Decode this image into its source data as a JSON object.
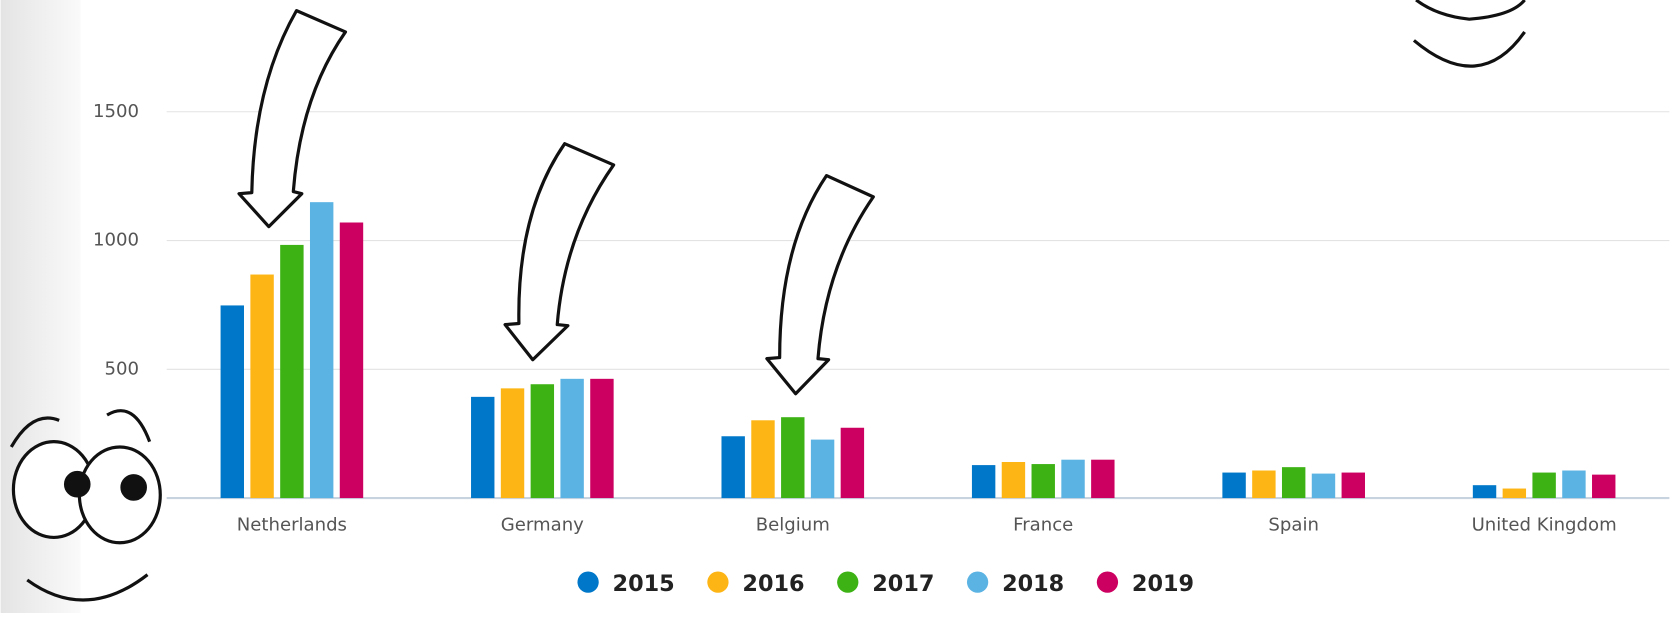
{
  "chart_data": {
    "type": "bar",
    "categories": [
      "Netherlands",
      "Germany",
      "Belgium",
      "France",
      "Spain",
      "United Kingdom"
    ],
    "series": [
      {
        "name": "2015",
        "color": "#0077c8",
        "values": [
          748,
          393,
          240,
          128,
          99,
          50
        ]
      },
      {
        "name": "2016",
        "color": "#fdb515",
        "values": [
          868,
          426,
          302,
          140,
          107,
          37
        ]
      },
      {
        "name": "2017",
        "color": "#3cb214",
        "values": [
          983,
          442,
          314,
          132,
          120,
          99
        ]
      },
      {
        "name": "2018",
        "color": "#5bb3e3",
        "values": [
          1149,
          463,
          227,
          149,
          95,
          107
        ]
      },
      {
        "name": "2019",
        "color": "#cc0060",
        "values": [
          1070,
          463,
          273,
          149,
          99,
          91
        ]
      }
    ],
    "ylim": [
      0,
      1934
    ],
    "yticks": [
      500,
      1000,
      1500
    ],
    "grid": true
  }
}
